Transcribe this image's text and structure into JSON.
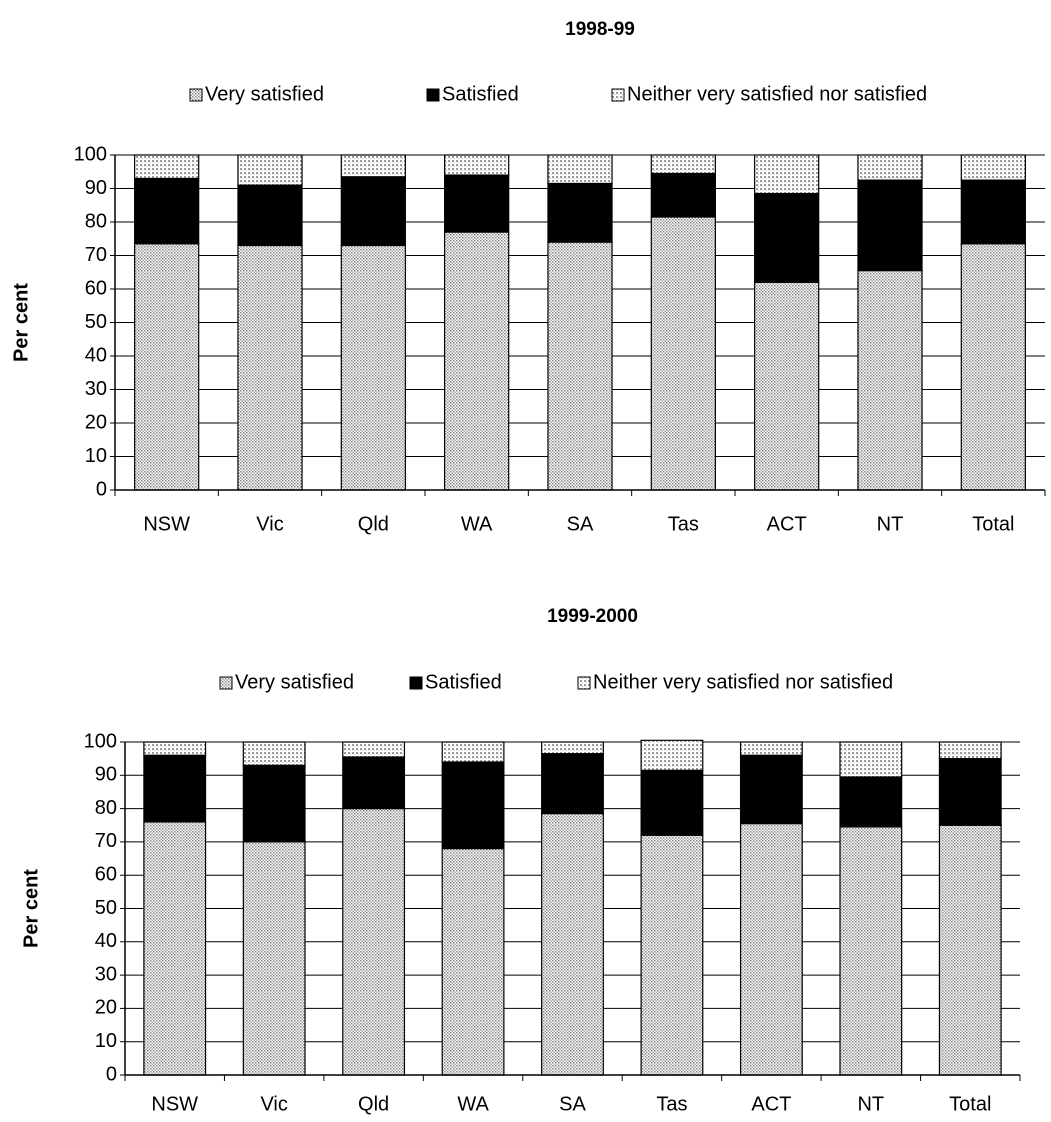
{
  "chart_data": [
    {
      "type": "bar",
      "stacked": true,
      "title": "1998-99",
      "y_label": "Per cent",
      "categories": [
        "NSW",
        "Vic",
        "Qld",
        "WA",
        "SA",
        "Tas",
        "ACT",
        "NT",
        "Total"
      ],
      "series": [
        {
          "name": "Very satisfied",
          "color": "#d4d4d4",
          "values": [
            73.5,
            73,
            73,
            77,
            74,
            81.5,
            62,
            65.5,
            73.5
          ]
        },
        {
          "name": "Satisfied",
          "color": "#000000",
          "values": [
            19.5,
            18,
            20.5,
            17,
            17.5,
            13,
            26.5,
            27,
            19
          ]
        },
        {
          "name": "Neither very satisfied nor satisfied",
          "color": "#e0e0e0",
          "values": [
            7,
            9,
            6.5,
            6,
            8.5,
            5.5,
            11.5,
            7.5,
            7.5
          ]
        }
      ],
      "ylim": [
        0,
        100
      ],
      "yticks": [
        0,
        10,
        20,
        30,
        40,
        50,
        60,
        70,
        80,
        90,
        100
      ],
      "grid": true
    },
    {
      "type": "bar",
      "stacked": true,
      "title": "1999-2000",
      "y_label": "Per cent",
      "categories": [
        "NSW",
        "Vic",
        "Qld",
        "WA",
        "SA",
        "Tas",
        "ACT",
        "NT",
        "Total"
      ],
      "series": [
        {
          "name": "Very satisfied",
          "color": "#d4d4d4",
          "values": [
            76,
            70,
            80,
            68,
            78.5,
            72,
            75.5,
            74.5,
            75
          ]
        },
        {
          "name": "Satisfied",
          "color": "#000000",
          "values": [
            20,
            23,
            15.5,
            26,
            18,
            19.5,
            20.5,
            15,
            20
          ]
        },
        {
          "name": "Neither very satisfied nor satisfied",
          "color": "#e0e0e0",
          "values": [
            4,
            7,
            4.5,
            6,
            3.5,
            9,
            4,
            10.5,
            5
          ]
        }
      ],
      "ylim": [
        0,
        100
      ],
      "yticks": [
        0,
        10,
        20,
        30,
        40,
        50,
        60,
        70,
        80,
        90,
        100
      ],
      "grid": true
    }
  ]
}
